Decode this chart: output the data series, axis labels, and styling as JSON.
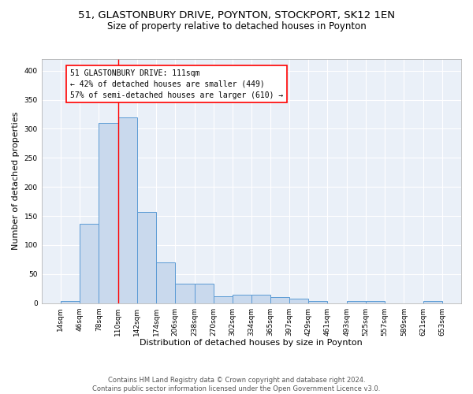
{
  "title": "51, GLASTONBURY DRIVE, POYNTON, STOCKPORT, SK12 1EN",
  "subtitle": "Size of property relative to detached houses in Poynton",
  "xlabel": "Distribution of detached houses by size in Poynton",
  "ylabel": "Number of detached properties",
  "bar_edges": [
    14,
    46,
    78,
    110,
    142,
    174,
    206,
    238,
    270,
    302,
    334,
    365,
    397,
    429,
    461,
    493,
    525,
    557,
    589,
    621,
    653
  ],
  "bar_heights": [
    4,
    136,
    310,
    320,
    157,
    70,
    33,
    33,
    11,
    14,
    14,
    10,
    7,
    4,
    0,
    4,
    4,
    0,
    0,
    4
  ],
  "bar_color": "#c9d9ed",
  "bar_edge_color": "#5b9bd5",
  "property_line_x": 111,
  "property_line_color": "red",
  "annotation_text": "51 GLASTONBURY DRIVE: 111sqm\n← 42% of detached houses are smaller (449)\n57% of semi-detached houses are larger (610) →",
  "annotation_box_color": "white",
  "annotation_box_edge_color": "red",
  "ylim": [
    0,
    420
  ],
  "yticks": [
    0,
    50,
    100,
    150,
    200,
    250,
    300,
    350,
    400
  ],
  "xtick_labels": [
    "14sqm",
    "46sqm",
    "78sqm",
    "110sqm",
    "142sqm",
    "174sqm",
    "206sqm",
    "238sqm",
    "270sqm",
    "302sqm",
    "334sqm",
    "365sqm",
    "397sqm",
    "429sqm",
    "461sqm",
    "493sqm",
    "525sqm",
    "557sqm",
    "589sqm",
    "621sqm",
    "653sqm"
  ],
  "footnote": "Contains HM Land Registry data © Crown copyright and database right 2024.\nContains public sector information licensed under the Open Government Licence v3.0.",
  "bg_color": "#eaf0f8",
  "grid_color": "white",
  "title_fontsize": 9.5,
  "subtitle_fontsize": 8.5,
  "xlabel_fontsize": 8,
  "ylabel_fontsize": 8,
  "tick_fontsize": 6.5,
  "footnote_fontsize": 6,
  "annotation_fontsize": 7
}
